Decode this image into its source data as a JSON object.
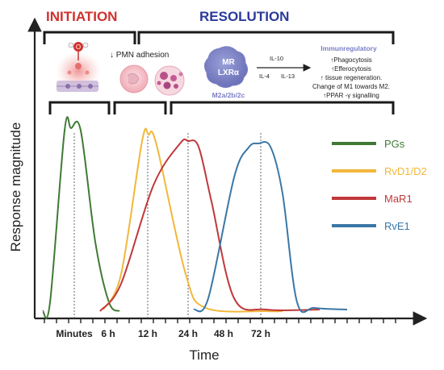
{
  "header": {
    "initiation": "INITIATION",
    "resolution": "RESOLUTION",
    "initiation_color": "#d0312d",
    "resolution_color": "#2b3a9a"
  },
  "panel": {
    "pmn_adhesion": "↓ PMN adhesion",
    "macrophage_line1": "MR",
    "macrophage_line2": "LXRα",
    "macrophage_subtypes": "M2a/2b/2c",
    "il10": "IL-10",
    "il4": "IL-4",
    "il13": "IL-13",
    "immunoregulatory_title": "Immunregulatory",
    "effects": [
      "↑Phagocytosis",
      "↑Efferocytosis",
      "↑ tissue regeneration.",
      "Change of M1 towards M2.",
      "↑PPAR -γ signalling"
    ]
  },
  "axes": {
    "ylabel": "Response magnitude",
    "xlabel": "Time",
    "ticks": [
      "Minutes",
      "6 h",
      "12 h",
      "24 h",
      "48 h",
      "72 h"
    ]
  },
  "chart_data": {
    "type": "line",
    "x_ticks": [
      "Minutes",
      "6 h",
      "12 h",
      "24 h",
      "48 h",
      "72 h"
    ],
    "xlabel": "Time",
    "ylabel": "Response magnitude",
    "series": [
      {
        "name": "PGs",
        "color": "#3f7a34",
        "peak_at": "Minutes"
      },
      {
        "name": "RvD1/D2",
        "color": "#f2b73a",
        "peak_at": "12 h"
      },
      {
        "name": "MaR1",
        "color": "#c0383b",
        "peak_at": "24 h"
      },
      {
        "name": "RvE1",
        "color": "#3a77a6",
        "peak_at": "72 h"
      }
    ]
  }
}
